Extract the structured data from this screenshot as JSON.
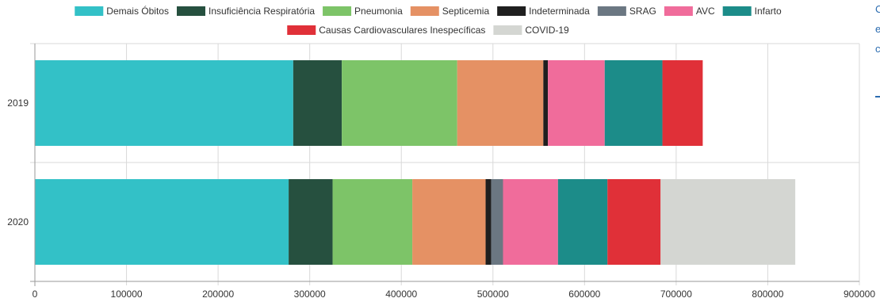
{
  "chart_data": {
    "type": "bar",
    "orientation": "horizontal",
    "stacked": true,
    "categories": [
      "2019",
      "2020"
    ],
    "series": [
      {
        "name": "Demais Óbitos",
        "color": "#33c1c7",
        "values": [
          282000,
          277000
        ]
      },
      {
        "name": "Insuficiência Respiratória",
        "color": "#26503f",
        "values": [
          53000,
          48000
        ]
      },
      {
        "name": "Pneumonia",
        "color": "#7dc468",
        "values": [
          126000,
          87000
        ]
      },
      {
        "name": "Septicemia",
        "color": "#e59164",
        "values": [
          94000,
          80000
        ]
      },
      {
        "name": "Indeterminada",
        "color": "#1f1f1f",
        "values": [
          5000,
          6000
        ]
      },
      {
        "name": "SRAG",
        "color": "#6b7782",
        "values": [
          0,
          13000
        ]
      },
      {
        "name": "AVC",
        "color": "#f06c9b",
        "values": [
          62000,
          60000
        ]
      },
      {
        "name": "Infarto",
        "color": "#1c8c89",
        "values": [
          63000,
          54000
        ]
      },
      {
        "name": "Causas Cardiovasculares Inespecíficas",
        "color": "#e03038",
        "values": [
          44000,
          58000
        ]
      },
      {
        "name": "COVID-19",
        "color": "#d4d6d2",
        "values": [
          0,
          147000
        ]
      }
    ],
    "xlim": [
      0,
      900000
    ],
    "xticks": [
      "0",
      "100000",
      "200000",
      "300000",
      "400000",
      "500000",
      "600000",
      "700000",
      "800000",
      "900000"
    ],
    "grid": true,
    "legend_position": "top"
  },
  "side_text": [
    "C",
    "e",
    "c"
  ]
}
